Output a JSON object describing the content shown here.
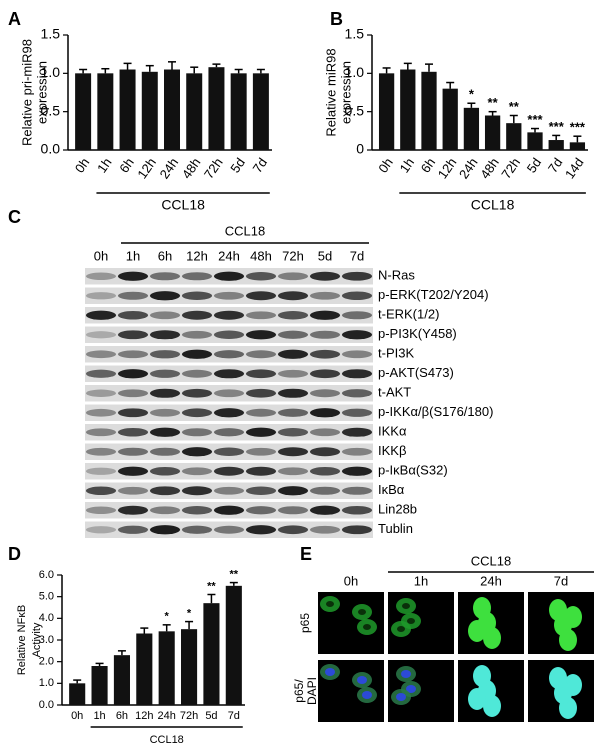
{
  "chart_data": [
    {
      "type": "bar",
      "panel": "A",
      "ylabel": [
        "Relative pri-miR98",
        "expression"
      ],
      "group_label": "CCL18",
      "categories": [
        "0h",
        "1h",
        "6h",
        "12h",
        "24h",
        "48h",
        "72h",
        "5d",
        "7d"
      ],
      "values": [
        1.0,
        1.0,
        1.05,
        1.02,
        1.05,
        1.0,
        1.08,
        1.0,
        1.0
      ],
      "errors": [
        0.05,
        0.06,
        0.08,
        0.08,
        0.1,
        0.08,
        0.04,
        0.05,
        0.05
      ],
      "color": "#111111",
      "ylim": [
        0,
        1.5
      ],
      "yticks": [
        {
          "value": 0,
          "label": "0.0"
        },
        0.5,
        {
          "value": 1,
          "label": "1.0"
        },
        1.5
      ]
    },
    {
      "type": "bar",
      "panel": "B",
      "ylabel": [
        "Relative miR98",
        "expression"
      ],
      "group_label": "CCL18",
      "categories": [
        "0h",
        "1h",
        "6h",
        "12h",
        "24h",
        "48h",
        "72h",
        "5d",
        "7d",
        "14d"
      ],
      "values": [
        1.0,
        1.05,
        1.02,
        0.8,
        0.55,
        0.45,
        0.35,
        0.23,
        0.13,
        0.1
      ],
      "errors": [
        0.07,
        0.08,
        0.1,
        0.08,
        0.06,
        0.05,
        0.1,
        0.05,
        0.06,
        0.08
      ],
      "significance": [
        null,
        null,
        null,
        null,
        "*",
        "**",
        "**",
        "***",
        "***",
        "***"
      ],
      "color": "#111111",
      "ylim": [
        0,
        1.5
      ],
      "yticks": [
        0,
        0.5,
        {
          "value": 1,
          "label": "1.0"
        },
        1.5
      ]
    },
    {
      "type": "bar",
      "panel": "D",
      "ylabel": [
        "Relative NFκB",
        "Activity"
      ],
      "group_label": "CCL18",
      "categories": [
        "0h",
        "1h",
        "6h",
        "12h",
        "24h",
        "72h",
        "5d",
        "7d"
      ],
      "values": [
        1.0,
        1.8,
        2.3,
        3.3,
        3.4,
        3.5,
        4.7,
        5.5
      ],
      "errors": [
        0.15,
        0.12,
        0.2,
        0.25,
        0.3,
        0.35,
        0.4,
        0.15
      ],
      "significance": [
        null,
        null,
        null,
        null,
        "*",
        "*",
        "**",
        "**"
      ],
      "color": "#111111",
      "ylim": [
        0,
        6
      ],
      "yticks": [
        {
          "value": 0,
          "label": "0.0"
        },
        {
          "value": 1,
          "label": "1.0"
        },
        {
          "value": 2,
          "label": "2.0"
        },
        {
          "value": 3,
          "label": "3.0"
        },
        {
          "value": 4,
          "label": "4.0"
        },
        {
          "value": 5,
          "label": "5.0"
        },
        {
          "value": 6,
          "label": "6.0"
        }
      ]
    }
  ],
  "blot": {
    "panel": "C",
    "group": "CCL18",
    "lanes": [
      "0h",
      "1h",
      "6h",
      "12h",
      "24h",
      "48h",
      "72h",
      "5d",
      "7d"
    ],
    "rows": [
      "N-Ras",
      "p-ERK(T202/Y204)",
      "t-ERK(1/2)",
      "p-PI3K(Y458)",
      "t-PI3K",
      "p-AKT(S473)",
      "t-AKT",
      "p-IKKα/β(S176/180)",
      "IKKα",
      "IKKβ",
      "p-IκBα(S32)",
      "IκBα",
      "Lin28b",
      "Tublin"
    ]
  },
  "images": {
    "panel": "E",
    "group": "CCL18",
    "columns": [
      "0h",
      "1h",
      "24h",
      "7d"
    ],
    "rows": [
      [
        "p65"
      ],
      [
        "p65/",
        "DAPI"
      ]
    ]
  }
}
